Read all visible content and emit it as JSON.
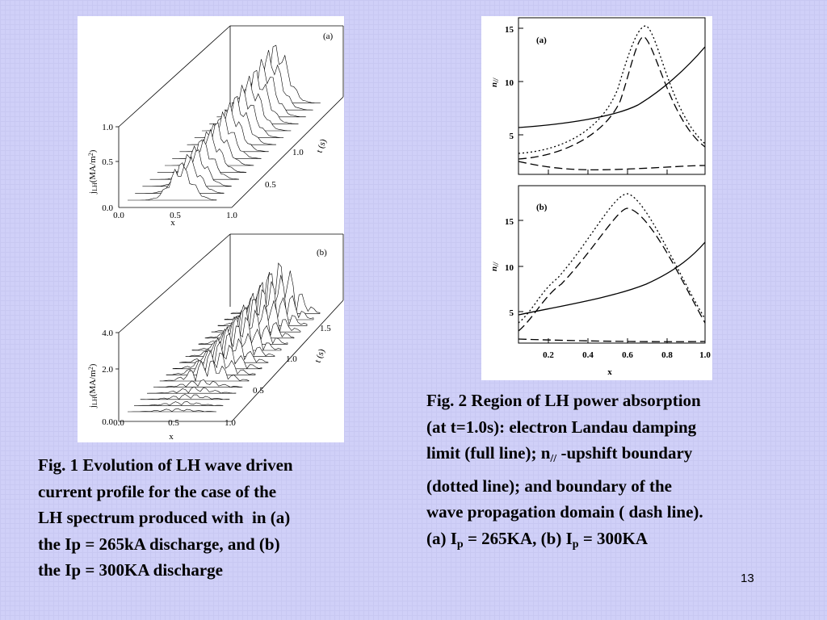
{
  "fig1": {
    "a": {
      "label": "(a)",
      "z_label": "j",
      "z_label_sub": "LH",
      "z_label_rest": "(MA/m",
      "z_label_sup": "2",
      "z_label_end": ")",
      "z_ticks": [
        "0.0",
        "0.5",
        "1.0"
      ],
      "x_ticks": [
        "0.0",
        "0.5",
        "1.0"
      ],
      "x_label": "x",
      "t_ticks": [
        "0.5",
        "1.0"
      ],
      "t_label": "t (s)"
    },
    "b": {
      "label": "(b)",
      "z_label": "j",
      "z_label_sub": "LH",
      "z_label_rest": "(MA/m",
      "z_label_sup": "2",
      "z_label_end": ")",
      "z_ticks": [
        "0.0",
        "2.0",
        "4.0"
      ],
      "x_ticks": [
        "0.0",
        "0.5",
        "1.0"
      ],
      "x_label": "x",
      "t_ticks": [
        "0.5",
        "1.0",
        "1.5"
      ],
      "t_label": "t (s)"
    }
  },
  "fig2": {
    "a": {
      "label": "(a)",
      "y_label": "n",
      "y_label_sub": "//",
      "y_ticks": [
        "5",
        "10",
        "15"
      ]
    },
    "b": {
      "label": "(b)",
      "y_label": "n",
      "y_label_sub": "//",
      "y_ticks": [
        "5",
        "10",
        "15"
      ],
      "x_ticks": [
        "0.2",
        "0.4",
        "0.6",
        "0.8",
        "1.0"
      ],
      "x_label": "x"
    }
  },
  "caption1": [
    "Fig. 1 Evolution of LH wave driven",
    "current profile for the case of the",
    "LH spectrum produced with  in (a)",
    "the Ip = 265kA discharge, and (b)",
    "the Ip = 300KA discharge"
  ],
  "caption2": [
    [
      {
        "text": "Fig. 2 Region of LH power absorption"
      }
    ],
    [
      {
        "text": "(at t=1.0s): electron Landau damping"
      }
    ],
    [
      {
        "text": "limit (full line); n"
      },
      {
        "sub": "//"
      },
      {
        "text": " -upshift boundary"
      }
    ],
    [
      {
        "text": "(dotted line); and boundary of the"
      }
    ],
    [
      {
        "text": "wave propagation domain ( dash line)."
      }
    ],
    [
      {
        "text": "(a) I"
      },
      {
        "sub": "p"
      },
      {
        "text": " = 265KA, (b) I"
      },
      {
        "sub": "p"
      },
      {
        "text": " = 300KA"
      }
    ]
  ],
  "page_number": "13"
}
